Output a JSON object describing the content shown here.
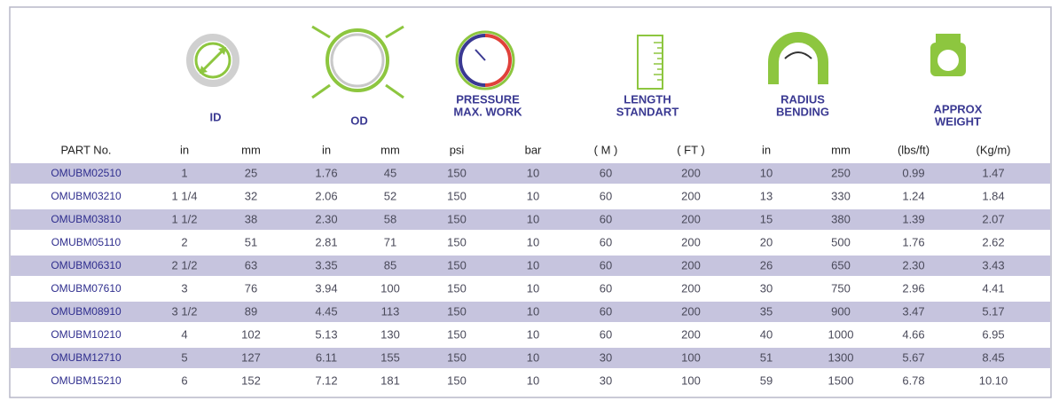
{
  "groups": [
    {
      "lines": [
        "ID"
      ]
    },
    {
      "lines": [
        "OD"
      ]
    },
    {
      "lines": [
        "PRESSURE",
        "MAX. WORK"
      ]
    },
    {
      "lines": [
        "LENGTH",
        "STANDART"
      ]
    },
    {
      "lines": [
        "RADIUS",
        "BENDING"
      ]
    },
    {
      "lines": [
        "APPROX",
        "WEIGHT"
      ]
    }
  ],
  "table": {
    "header": [
      "PART No.",
      "in",
      "mm",
      "in",
      "mm",
      "psi",
      "bar",
      "( M )",
      "( FT )",
      "in",
      "mm",
      "(lbs/ft)",
      "(Kg/m)"
    ],
    "rows": [
      [
        "OMUBM02510",
        "1",
        "25",
        "1.76",
        "45",
        "150",
        "10",
        "60",
        "200",
        "10",
        "250",
        "0.99",
        "1.47"
      ],
      [
        "OMUBM03210",
        "1 1/4",
        "32",
        "2.06",
        "52",
        "150",
        "10",
        "60",
        "200",
        "13",
        "330",
        "1.24",
        "1.84"
      ],
      [
        "OMUBM03810",
        "1 1/2",
        "38",
        "2.30",
        "58",
        "150",
        "10",
        "60",
        "200",
        "15",
        "380",
        "1.39",
        "2.07"
      ],
      [
        "OMUBM05110",
        "2",
        "51",
        "2.81",
        "71",
        "150",
        "10",
        "60",
        "200",
        "20",
        "500",
        "1.76",
        "2.62"
      ],
      [
        "OMUBM06310",
        "2 1/2",
        "63",
        "3.35",
        "85",
        "150",
        "10",
        "60",
        "200",
        "26",
        "650",
        "2.30",
        "3.43"
      ],
      [
        "OMUBM07610",
        "3",
        "76",
        "3.94",
        "100",
        "150",
        "10",
        "60",
        "200",
        "30",
        "750",
        "2.96",
        "4.41"
      ],
      [
        "OMUBM08910",
        "3 1/2",
        "89",
        "4.45",
        "113",
        "150",
        "10",
        "60",
        "200",
        "35",
        "900",
        "3.47",
        "5.17"
      ],
      [
        "OMUBM10210",
        "4",
        "102",
        "5.13",
        "130",
        "150",
        "10",
        "60",
        "200",
        "40",
        "1000",
        "4.66",
        "6.95"
      ],
      [
        "OMUBM12710",
        "5",
        "127",
        "6.11",
        "155",
        "150",
        "10",
        "30",
        "100",
        "51",
        "1300",
        "5.67",
        "8.45"
      ],
      [
        "OMUBM15210",
        "6",
        "152",
        "7.12",
        "181",
        "150",
        "10",
        "30",
        "100",
        "59",
        "1500",
        "6.78",
        "10.10"
      ]
    ]
  }
}
